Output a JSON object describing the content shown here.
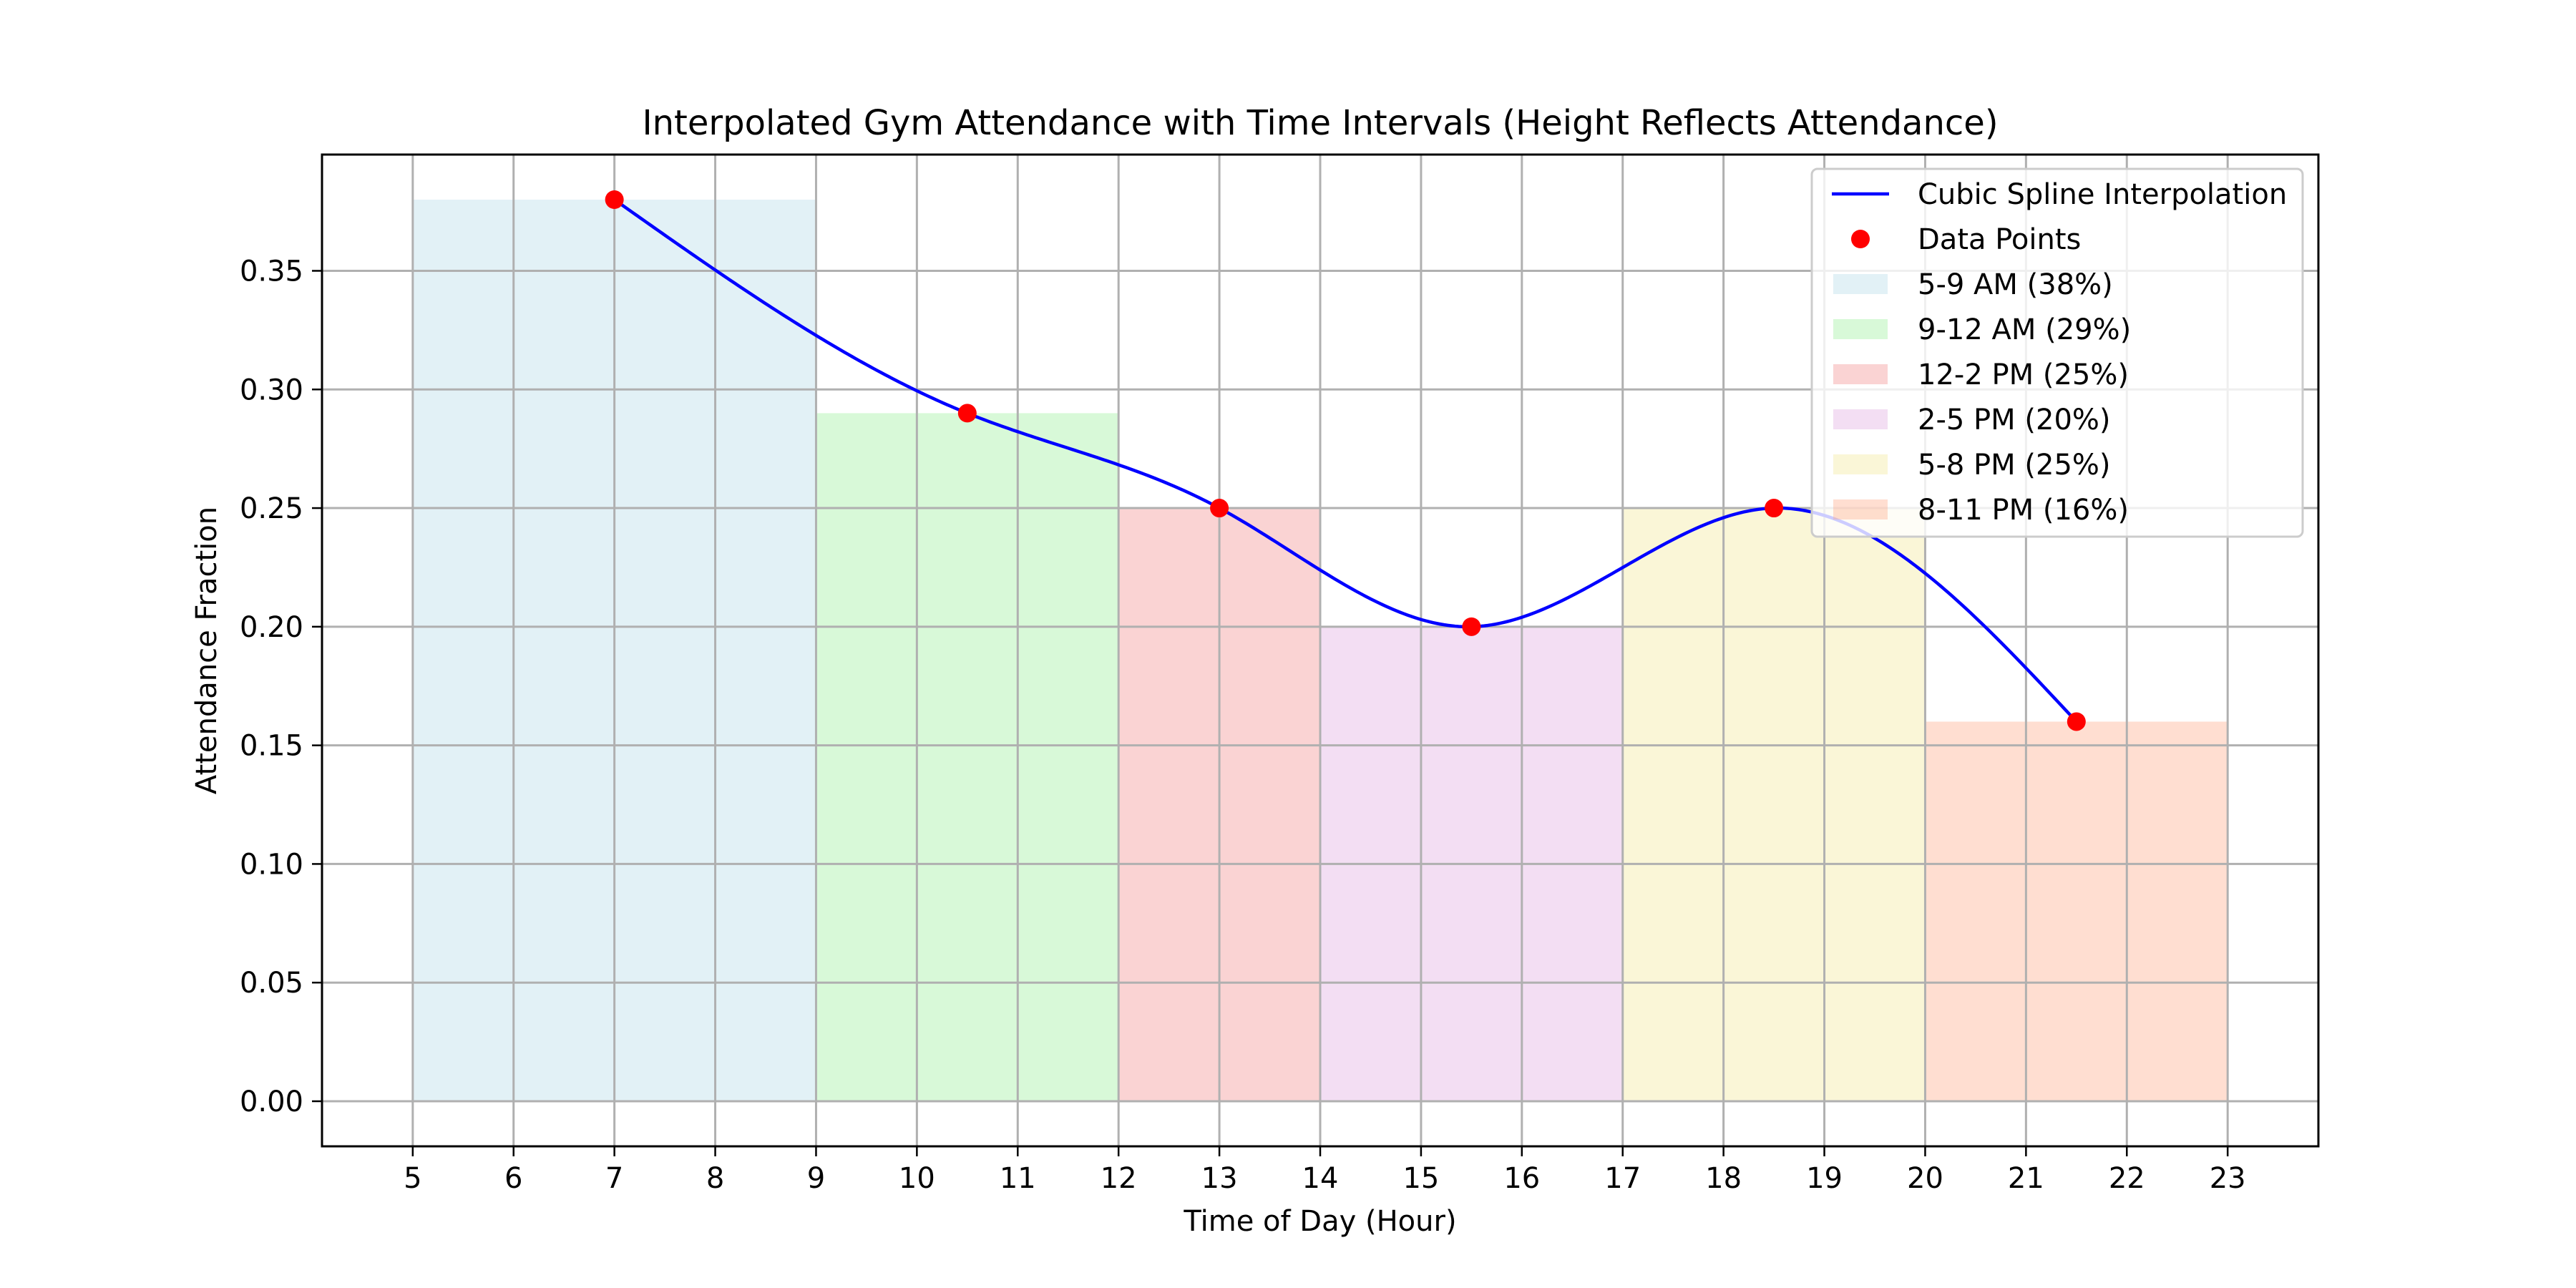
{
  "chart_data": {
    "type": "area",
    "title": "Interpolated Gym Attendance with Time Intervals (Height Reflects Attendance)",
    "xlabel": "Time of Day (Hour)",
    "ylabel": "Attendance Fraction",
    "xlim": [
      4.1,
      23.9
    ],
    "ylim": [
      -0.019,
      0.399
    ],
    "xticks": [
      5,
      6,
      7,
      8,
      9,
      10,
      11,
      12,
      13,
      14,
      15,
      16,
      17,
      18,
      19,
      20,
      21,
      22,
      23
    ],
    "xtick_labels": [
      "5",
      "6",
      "7",
      "8",
      "9",
      "10",
      "11",
      "12",
      "13",
      "14",
      "15",
      "16",
      "17",
      "18",
      "19",
      "20",
      "21",
      "22",
      "23"
    ],
    "yticks": [
      0.0,
      0.05,
      0.1,
      0.15,
      0.2,
      0.25,
      0.3,
      0.35
    ],
    "ytick_labels": [
      "0.00",
      "0.05",
      "0.10",
      "0.15",
      "0.20",
      "0.25",
      "0.30",
      "0.35"
    ],
    "grid": true,
    "legend_position": "top-right",
    "intervals": [
      {
        "label": "5-9 AM (38%)",
        "start": 5,
        "end": 9,
        "value": 0.38,
        "color": "#add8e6"
      },
      {
        "label": "9-12 AM (29%)",
        "start": 9,
        "end": 12,
        "value": 0.29,
        "color": "#90ee90"
      },
      {
        "label": "12-2 PM (25%)",
        "start": 12,
        "end": 14,
        "value": 0.25,
        "color": "#f08080"
      },
      {
        "label": "2-5 PM (20%)",
        "start": 14,
        "end": 17,
        "value": 0.2,
        "color": "#dda0dd"
      },
      {
        "label": "5-8 PM (25%)",
        "start": 17,
        "end": 20,
        "value": 0.25,
        "color": "#f0e68c"
      },
      {
        "label": "8-11 PM (16%)",
        "start": 20,
        "end": 23,
        "value": 0.16,
        "color": "#ffa07a"
      }
    ],
    "interval_alpha": 0.35,
    "series": [
      {
        "name": "Cubic Spline Interpolation",
        "kind": "line",
        "color": "#0000ff"
      },
      {
        "name": "Data Points",
        "kind": "scatter",
        "color": "#ff0000"
      }
    ],
    "data_points": {
      "x": [
        7,
        10.5,
        13,
        15.5,
        18.5,
        21.5
      ],
      "y": [
        0.38,
        0.29,
        0.25,
        0.2,
        0.25,
        0.16
      ]
    }
  }
}
